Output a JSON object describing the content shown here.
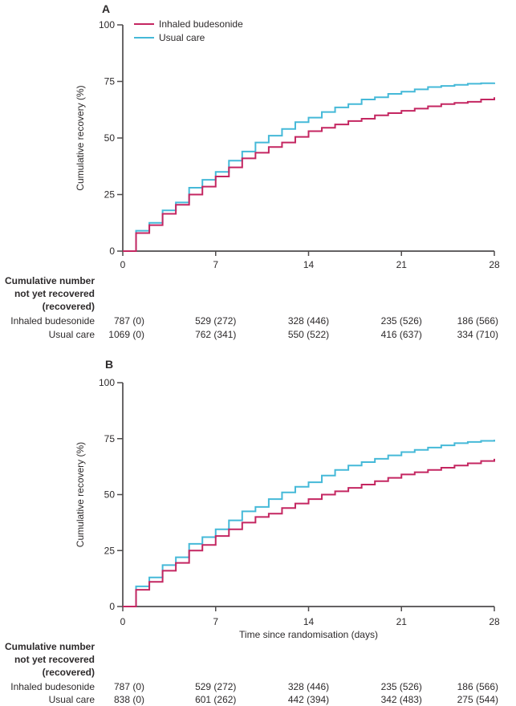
{
  "colors": {
    "inhaled_budesonide": "#c42661",
    "usual_care": "#45b9d8",
    "axis": "#4f4c4d",
    "text": "#2d2a2b",
    "background": "#ffffff"
  },
  "chart_data": [
    {
      "type": "line",
      "subtype": "step-cumulative-incidence",
      "panel_label": "A",
      "title": "",
      "xlabel": "",
      "ylabel": "Cumulative recovery (%)",
      "xlim": [
        0,
        28
      ],
      "ylim": [
        0,
        100
      ],
      "xticks": [
        0,
        7,
        14,
        21,
        28
      ],
      "yticks": [
        0,
        25,
        50,
        75,
        100
      ],
      "grid": false,
      "legend_visible": true,
      "legend_position": "top-left-inside",
      "x": [
        0,
        1,
        2,
        3,
        4,
        5,
        6,
        7,
        8,
        9,
        10,
        11,
        12,
        13,
        14,
        15,
        16,
        17,
        18,
        19,
        20,
        21,
        22,
        23,
        24,
        25,
        26,
        27,
        28
      ],
      "series": [
        {
          "name": "Inhaled budesonide",
          "color_key": "inhaled_budesonide",
          "values": [
            0,
            8,
            11.5,
            16.5,
            20.5,
            25,
            28.5,
            33,
            37,
            41,
            43.5,
            46,
            48,
            50.5,
            53,
            54.5,
            56,
            57.5,
            58.5,
            60,
            61,
            62,
            63,
            64,
            65,
            65.5,
            66,
            67,
            68
          ]
        },
        {
          "name": "Usual care",
          "color_key": "usual_care",
          "values": [
            0,
            9,
            12.5,
            18,
            21.5,
            28,
            31.5,
            35,
            40,
            44,
            48,
            51,
            54,
            57,
            59,
            61.5,
            63.5,
            65,
            67,
            68,
            69.5,
            70.5,
            71.5,
            72.5,
            73,
            73.5,
            74,
            74.2,
            74.5
          ]
        }
      ],
      "risk_table": {
        "header_lines": [
          "Cumulative number",
          "not yet recovered",
          "(recovered)"
        ],
        "columns_at_days": [
          0,
          7,
          14,
          21,
          28
        ],
        "rows": [
          {
            "label": "Inhaled budesonide",
            "values": [
              "787 (0)",
              "529 (272)",
              "328 (446)",
              "235 (526)",
              "186 (566)"
            ]
          },
          {
            "label": "Usual care",
            "values": [
              "1069 (0)",
              "762 (341)",
              "550 (522)",
              "416 (637)",
              "334 (710)"
            ]
          }
        ]
      }
    },
    {
      "type": "line",
      "subtype": "step-cumulative-incidence",
      "panel_label": "B",
      "title": "",
      "xlabel": "Time since randomisation (days)",
      "ylabel": "Cumulative recovery (%)",
      "xlim": [
        0,
        28
      ],
      "ylim": [
        0,
        100
      ],
      "xticks": [
        0,
        7,
        14,
        21,
        28
      ],
      "yticks": [
        0,
        25,
        50,
        75,
        100
      ],
      "grid": false,
      "legend_visible": false,
      "legend_position": "none",
      "x": [
        0,
        1,
        2,
        3,
        4,
        5,
        6,
        7,
        8,
        9,
        10,
        11,
        12,
        13,
        14,
        15,
        16,
        17,
        18,
        19,
        20,
        21,
        22,
        23,
        24,
        25,
        26,
        27,
        28
      ],
      "series": [
        {
          "name": "Inhaled budesonide",
          "color_key": "inhaled_budesonide",
          "values": [
            0,
            7.5,
            11,
            16,
            19.5,
            25,
            27.5,
            31.5,
            34.5,
            37.5,
            40,
            41.5,
            44,
            46,
            48,
            50,
            51.5,
            53,
            54.5,
            56,
            57.5,
            59,
            60,
            61,
            62,
            63,
            64,
            65,
            66
          ]
        },
        {
          "name": "Usual care",
          "color_key": "usual_care",
          "values": [
            0,
            9,
            13,
            18.5,
            22,
            28,
            31,
            34.5,
            38.5,
            42.5,
            44.5,
            48,
            51,
            53.5,
            55.5,
            58.5,
            61,
            63,
            64.5,
            66,
            67.5,
            69,
            70,
            71,
            72,
            73,
            73.5,
            74,
            74.5
          ]
        }
      ],
      "risk_table": {
        "header_lines": [
          "Cumulative number",
          "not yet recovered",
          "(recovered)"
        ],
        "columns_at_days": [
          0,
          7,
          14,
          21,
          28
        ],
        "rows": [
          {
            "label": "Inhaled budesonide",
            "values": [
              "787 (0)",
              "529 (272)",
              "328 (446)",
              "235 (526)",
              "186 (566)"
            ]
          },
          {
            "label": "Usual care",
            "values": [
              "838 (0)",
              "601 (262)",
              "442 (394)",
              "342 (483)",
              "275 (544)"
            ]
          }
        ]
      }
    }
  ]
}
